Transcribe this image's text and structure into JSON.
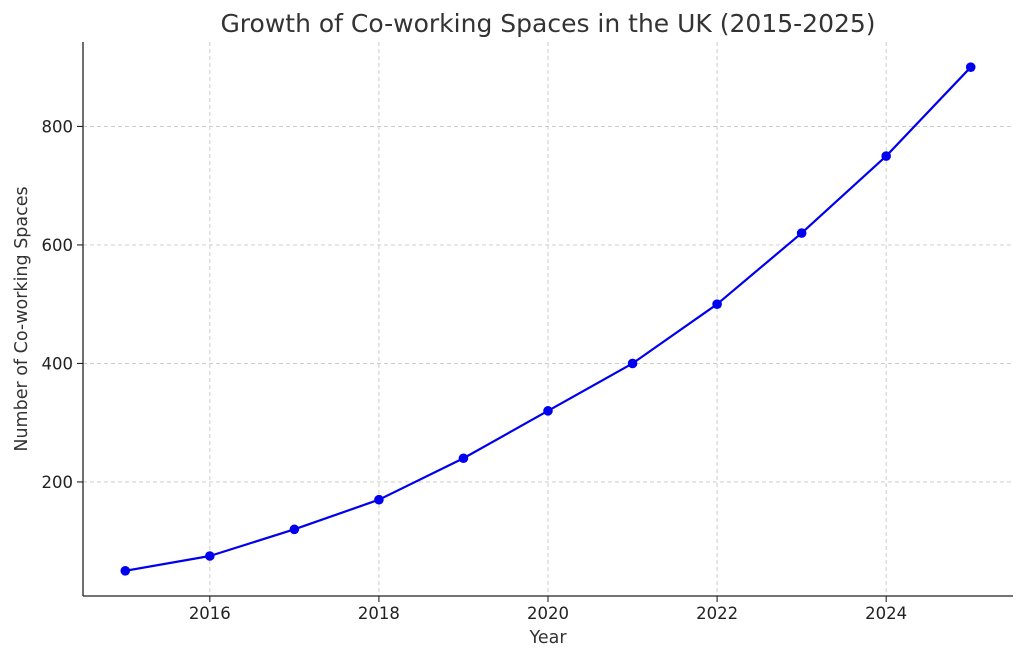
{
  "chart_data": {
    "type": "line",
    "title": "Growth of Co-working Spaces in the UK (2015-2025)",
    "xlabel": "Year",
    "ylabel": "Number of Co-working Spaces",
    "x": [
      2015,
      2016,
      2017,
      2018,
      2019,
      2020,
      2021,
      2022,
      2023,
      2024,
      2025
    ],
    "series": [
      {
        "values": [
          50,
          75,
          120,
          170,
          240,
          320,
          400,
          500,
          620,
          750,
          900
        ],
        "color": "#0000ee",
        "marker": "circle"
      }
    ],
    "xlim": [
      2014.5,
      2025.5
    ],
    "ylim": [
      7.5,
      942.5
    ],
    "xticks": [
      2016,
      2018,
      2020,
      2022,
      2024
    ],
    "yticks": [
      200,
      400,
      600,
      800
    ],
    "grid": true,
    "legend": "none"
  }
}
